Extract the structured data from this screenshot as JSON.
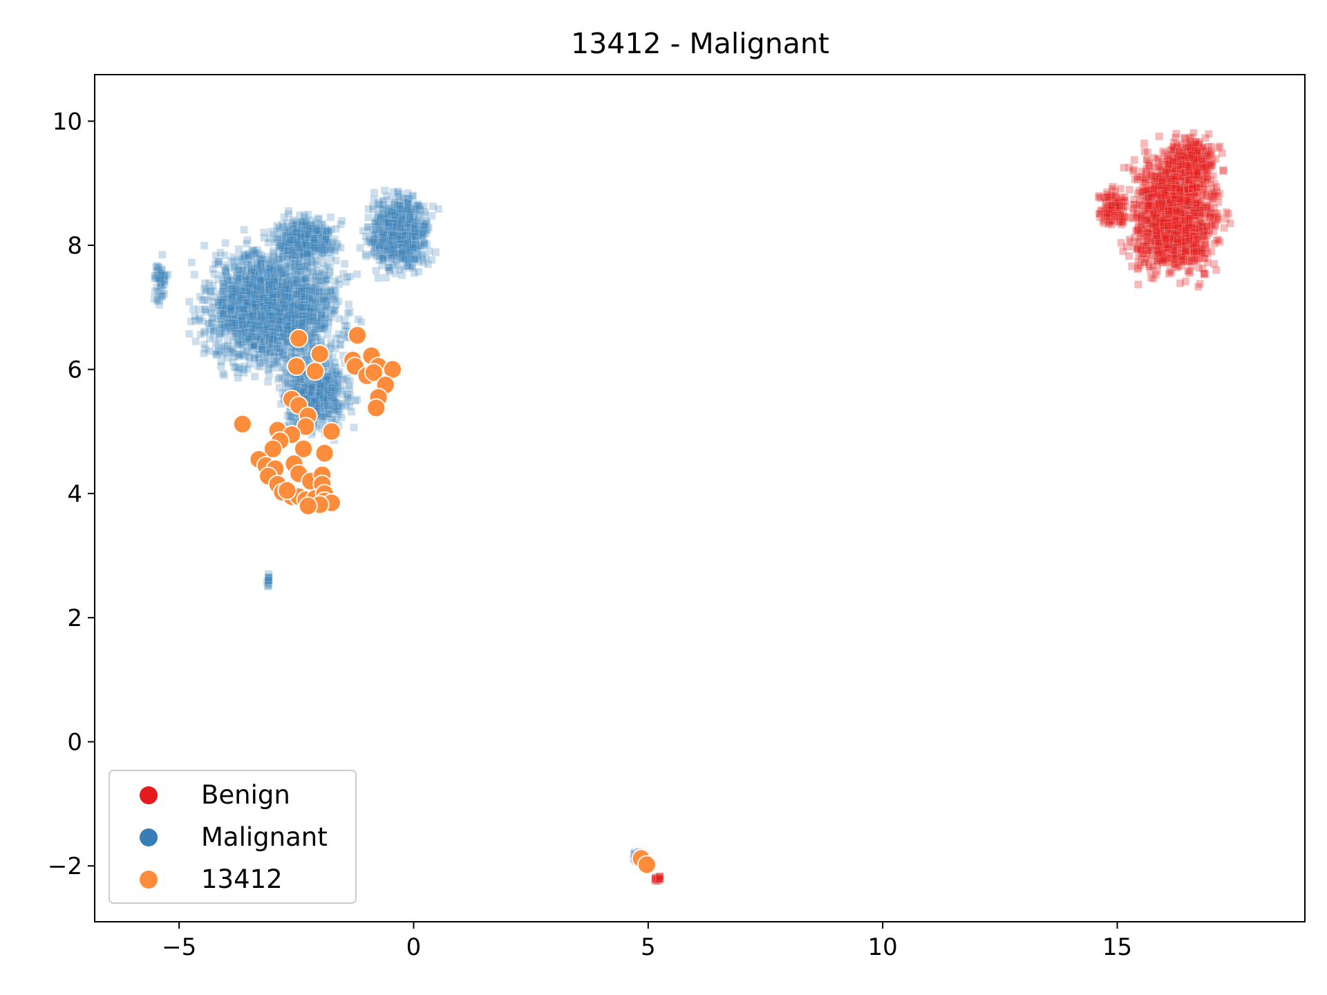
{
  "chart_data": {
    "type": "scatter",
    "title": "13412 - Malignant",
    "xlabel": "",
    "ylabel": "",
    "xlim": [
      -6.8,
      19.0
    ],
    "ylim": [
      -2.9,
      10.75
    ],
    "xticks": [
      -5,
      0,
      5,
      10,
      15
    ],
    "yticks": [
      -2,
      0,
      2,
      4,
      6,
      8,
      10
    ],
    "grid": false,
    "legend_position": "lower-left",
    "series": [
      {
        "name": "Benign",
        "color": "#e41a1c",
        "marker": "square",
        "opacity": 0.3,
        "clusters": [
          {
            "cx": 16.2,
            "cy": 8.5,
            "rx": 1.55,
            "ry": 1.6,
            "n": 1400
          },
          {
            "cx": 14.9,
            "cy": 8.6,
            "rx": 0.5,
            "ry": 0.5,
            "n": 120
          },
          {
            "cx": 16.6,
            "cy": 9.4,
            "rx": 0.8,
            "ry": 0.55,
            "n": 260
          },
          {
            "cx": 5.2,
            "cy": -2.2,
            "rx": 0.12,
            "ry": 0.08,
            "n": 20
          }
        ]
      },
      {
        "name": "Malignant",
        "color": "#377eb8",
        "marker": "square",
        "opacity": 0.25,
        "clusters": [
          {
            "cx": -3.0,
            "cy": 7.0,
            "rx": 2.4,
            "ry": 1.6,
            "n": 2000
          },
          {
            "cx": -2.1,
            "cy": 5.6,
            "rx": 1.2,
            "ry": 1.0,
            "n": 600
          },
          {
            "cx": -0.3,
            "cy": 8.2,
            "rx": 1.1,
            "ry": 1.0,
            "n": 700
          },
          {
            "cx": -2.3,
            "cy": 8.1,
            "rx": 1.1,
            "ry": 0.6,
            "n": 400
          },
          {
            "cx": -5.4,
            "cy": 7.4,
            "rx": 0.25,
            "ry": 0.6,
            "n": 60
          },
          {
            "cx": -3.1,
            "cy": 2.6,
            "rx": 0.05,
            "ry": 0.2,
            "n": 14
          },
          {
            "cx": 4.8,
            "cy": -1.85,
            "rx": 0.25,
            "ry": 0.15,
            "n": 25
          }
        ]
      },
      {
        "name": "13412",
        "color": "#ff8c3a",
        "marker": "circle",
        "opacity": 1,
        "points": [
          [
            -2.45,
            6.5
          ],
          [
            -1.2,
            6.55
          ],
          [
            -2.0,
            6.25
          ],
          [
            -1.3,
            6.15
          ],
          [
            -0.9,
            6.22
          ],
          [
            -0.75,
            6.05
          ],
          [
            -0.45,
            6.0
          ],
          [
            -2.5,
            6.05
          ],
          [
            -2.1,
            5.97
          ],
          [
            -1.25,
            6.05
          ],
          [
            -1.0,
            5.9
          ],
          [
            -0.85,
            5.95
          ],
          [
            -0.6,
            5.75
          ],
          [
            -0.75,
            5.55
          ],
          [
            -0.8,
            5.38
          ],
          [
            -2.6,
            5.52
          ],
          [
            -2.45,
            5.42
          ],
          [
            -2.25,
            5.25
          ],
          [
            -2.3,
            5.08
          ],
          [
            -3.65,
            5.12
          ],
          [
            -1.75,
            5.0
          ],
          [
            -2.9,
            5.02
          ],
          [
            -2.6,
            4.95
          ],
          [
            -2.35,
            4.72
          ],
          [
            -1.9,
            4.65
          ],
          [
            -2.85,
            4.85
          ],
          [
            -3.0,
            4.72
          ],
          [
            -3.3,
            4.55
          ],
          [
            -3.15,
            4.45
          ],
          [
            -2.95,
            4.4
          ],
          [
            -2.55,
            4.48
          ],
          [
            -2.45,
            4.32
          ],
          [
            -3.1,
            4.28
          ],
          [
            -2.9,
            4.15
          ],
          [
            -2.2,
            4.2
          ],
          [
            -1.95,
            4.3
          ],
          [
            -1.95,
            4.15
          ],
          [
            -2.8,
            4.02
          ],
          [
            -2.6,
            3.95
          ],
          [
            -2.45,
            3.95
          ],
          [
            -2.3,
            3.9
          ],
          [
            -2.1,
            3.92
          ],
          [
            -1.9,
            4.0
          ],
          [
            -1.9,
            3.88
          ],
          [
            -1.75,
            3.85
          ],
          [
            -2.0,
            3.82
          ],
          [
            -2.25,
            3.8
          ],
          [
            -2.7,
            4.05
          ],
          [
            4.85,
            -1.88
          ],
          [
            4.97,
            -1.98
          ]
        ]
      }
    ]
  }
}
